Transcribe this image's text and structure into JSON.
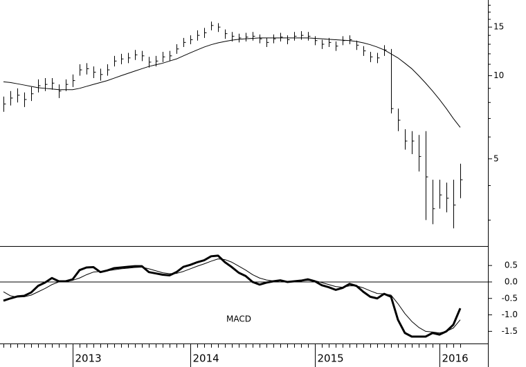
{
  "chart_data": [
    {
      "type": "ohlc",
      "log_scale": true,
      "color": "#000000",
      "ma_color": "#000000",
      "ylim": [
        2.43,
        18.8
      ],
      "yticks": [
        5,
        10,
        15
      ],
      "minor_yticks": [
        3,
        4,
        6,
        7,
        8,
        9,
        11,
        12,
        13,
        14,
        16,
        17,
        18
      ],
      "high": [
        8.4,
        8.8,
        9.0,
        8.7,
        9.1,
        9.7,
        9.8,
        9.8,
        9.3,
        9.7,
        10.1,
        11.0,
        11.1,
        10.8,
        10.6,
        11.0,
        11.8,
        12.0,
        12.1,
        12.4,
        12.3,
        11.7,
        11.8,
        12.2,
        12.3,
        13.0,
        13.7,
        14.0,
        14.6,
        14.9,
        15.7,
        15.5,
        14.7,
        14.4,
        14.2,
        14.3,
        14.4,
        14.1,
        13.7,
        14.1,
        14.3,
        14.0,
        14.4,
        14.5,
        14.4,
        13.9,
        13.5,
        13.7,
        13.3,
        13.9,
        14.0,
        13.4,
        12.8,
        12.2,
        12.1,
        12.9,
        12.5,
        7.6,
        6.4,
        6.3,
        6.1,
        6.3,
        4.2,
        4.2,
        4.1,
        4.2,
        4.8
      ],
      "low": [
        7.4,
        7.8,
        8.0,
        7.7,
        8.1,
        8.7,
        8.8,
        8.9,
        8.3,
        8.8,
        9.1,
        10.0,
        10.1,
        9.8,
        9.6,
        10.0,
        10.8,
        11.0,
        11.1,
        11.4,
        11.3,
        10.7,
        10.8,
        11.2,
        11.3,
        12.0,
        12.7,
        13.0,
        13.4,
        13.7,
        14.6,
        14.4,
        13.6,
        13.3,
        13.2,
        13.3,
        13.4,
        13.1,
        12.7,
        13.1,
        13.3,
        13.0,
        13.4,
        13.5,
        13.4,
        12.9,
        12.5,
        12.7,
        12.3,
        12.9,
        13.0,
        12.4,
        11.8,
        11.2,
        11.1,
        11.8,
        7.3,
        6.3,
        5.4,
        5.2,
        4.5,
        3.0,
        2.9,
        3.3,
        3.2,
        2.8,
        3.6
      ],
      "close": [
        7.9,
        8.3,
        8.5,
        8.2,
        8.6,
        9.2,
        9.3,
        9.4,
        8.8,
        9.3,
        9.6,
        10.5,
        10.6,
        10.3,
        10.1,
        10.5,
        11.3,
        11.5,
        11.6,
        11.9,
        11.8,
        11.2,
        11.3,
        11.7,
        11.8,
        12.5,
        13.2,
        13.5,
        14.0,
        14.3,
        15.2,
        15.0,
        14.2,
        13.9,
        13.7,
        13.8,
        13.9,
        13.6,
        13.2,
        13.6,
        13.8,
        13.5,
        13.9,
        14.0,
        13.9,
        13.4,
        13.0,
        13.2,
        12.8,
        13.4,
        13.5,
        12.9,
        12.3,
        11.7,
        11.6,
        12.4,
        7.6,
        6.9,
        5.8,
        5.8,
        5.1,
        4.3,
        3.3,
        3.7,
        3.6,
        3.4,
        4.2
      ],
      "moving_average": [
        9.5,
        9.45,
        9.35,
        9.25,
        9.15,
        9.05,
        9.0,
        8.95,
        8.9,
        8.9,
        8.9,
        9.0,
        9.15,
        9.3,
        9.45,
        9.6,
        9.8,
        10.0,
        10.2,
        10.4,
        10.6,
        10.8,
        10.95,
        11.1,
        11.3,
        11.5,
        11.8,
        12.1,
        12.4,
        12.7,
        12.95,
        13.15,
        13.3,
        13.45,
        13.55,
        13.6,
        13.65,
        13.7,
        13.7,
        13.7,
        13.7,
        13.7,
        13.7,
        13.7,
        13.7,
        13.65,
        13.6,
        13.55,
        13.5,
        13.45,
        13.4,
        13.3,
        13.15,
        12.95,
        12.7,
        12.4,
        12.0,
        11.6,
        11.1,
        10.6,
        10.0,
        9.4,
        8.8,
        8.2,
        7.6,
        7.0,
        6.5
      ]
    },
    {
      "type": "line",
      "annotation": "MACD",
      "ylim": [
        -1.87,
        1.07
      ],
      "yticks": [
        0.5,
        {
          "value": 0,
          "label": "0.0"
        },
        -0.5,
        {
          "value": -1,
          "label": "-1.0"
        },
        -1.5
      ],
      "hline": 0,
      "categories": [
        null,
        null,
        null,
        null,
        null,
        null,
        null,
        null,
        null,
        null,
        "2013",
        null,
        null,
        null,
        null,
        null,
        null,
        null,
        null,
        null,
        null,
        null,
        null,
        null,
        null,
        null,
        null,
        "2014",
        null,
        null,
        null,
        null,
        null,
        null,
        null,
        null,
        null,
        null,
        null,
        null,
        null,
        null,
        null,
        null,
        null,
        "2015",
        null,
        null,
        null,
        null,
        null,
        null,
        null,
        null,
        null,
        null,
        null,
        null,
        null,
        null,
        null,
        null,
        null,
        "2016",
        null,
        null,
        null
      ],
      "series": [
        {
          "color": "#000000",
          "line_width": 3,
          "values": [
            -0.57,
            -0.5,
            -0.44,
            -0.42,
            -0.32,
            -0.12,
            -0.02,
            0.12,
            0.02,
            0.02,
            0.08,
            0.36,
            0.44,
            0.45,
            0.3,
            0.35,
            0.42,
            0.44,
            0.46,
            0.48,
            0.48,
            0.3,
            0.26,
            0.22,
            0.2,
            0.3,
            0.46,
            0.52,
            0.6,
            0.66,
            0.78,
            0.8,
            0.6,
            0.45,
            0.28,
            0.18,
            0.0,
            -0.08,
            -0.02,
            0.02,
            0.05,
            0.0,
            0.02,
            0.04,
            0.08,
            0.02,
            -0.1,
            -0.16,
            -0.24,
            -0.18,
            -0.06,
            -0.12,
            -0.3,
            -0.45,
            -0.5,
            -0.36,
            -0.45,
            -1.15,
            -1.55,
            -1.66,
            -1.66,
            -1.66,
            -1.55,
            -1.6,
            -1.5,
            -1.3,
            -0.8
          ]
        },
        {
          "color": "#000000",
          "line_width": 1,
          "values": [
            -0.3,
            -0.42,
            -0.46,
            -0.45,
            -0.4,
            -0.3,
            -0.2,
            -0.08,
            0.0,
            0.02,
            0.05,
            0.12,
            0.22,
            0.3,
            0.32,
            0.34,
            0.37,
            0.4,
            0.42,
            0.44,
            0.45,
            0.4,
            0.34,
            0.28,
            0.25,
            0.26,
            0.32,
            0.4,
            0.48,
            0.55,
            0.63,
            0.7,
            0.68,
            0.6,
            0.48,
            0.36,
            0.22,
            0.12,
            0.06,
            0.03,
            0.03,
            0.02,
            0.02,
            0.03,
            0.05,
            0.04,
            -0.02,
            -0.08,
            -0.14,
            -0.16,
            -0.12,
            -0.12,
            -0.18,
            -0.27,
            -0.35,
            -0.36,
            -0.4,
            -0.66,
            -0.96,
            -1.2,
            -1.38,
            -1.5,
            -1.52,
            -1.55,
            -1.5,
            -1.4,
            -1.15
          ]
        }
      ]
    }
  ]
}
